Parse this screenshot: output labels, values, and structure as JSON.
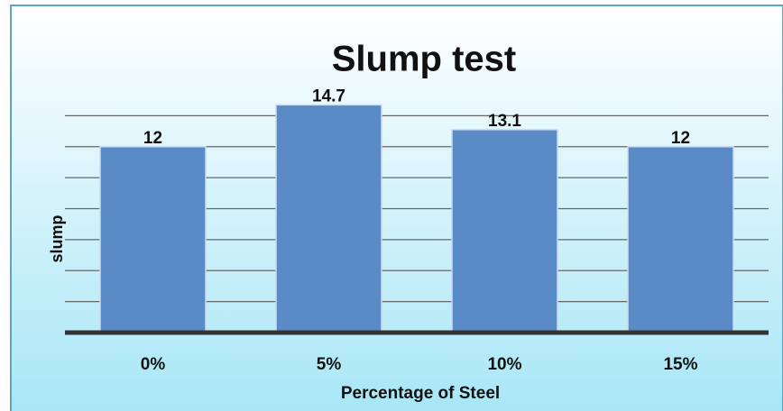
{
  "chart_data": {
    "type": "bar",
    "title": "Slump test",
    "x_label": "Percentage of Steel",
    "y_label": "slump",
    "categories": [
      "0%",
      "5%",
      "10%",
      "15%"
    ],
    "values": [
      12,
      14.7,
      13.1,
      12
    ],
    "color": "#5b8bc7",
    "ylim": [
      0,
      16
    ],
    "yticks": [
      0,
      2,
      4,
      6,
      8,
      10,
      12,
      14
    ],
    "grid": true
  }
}
